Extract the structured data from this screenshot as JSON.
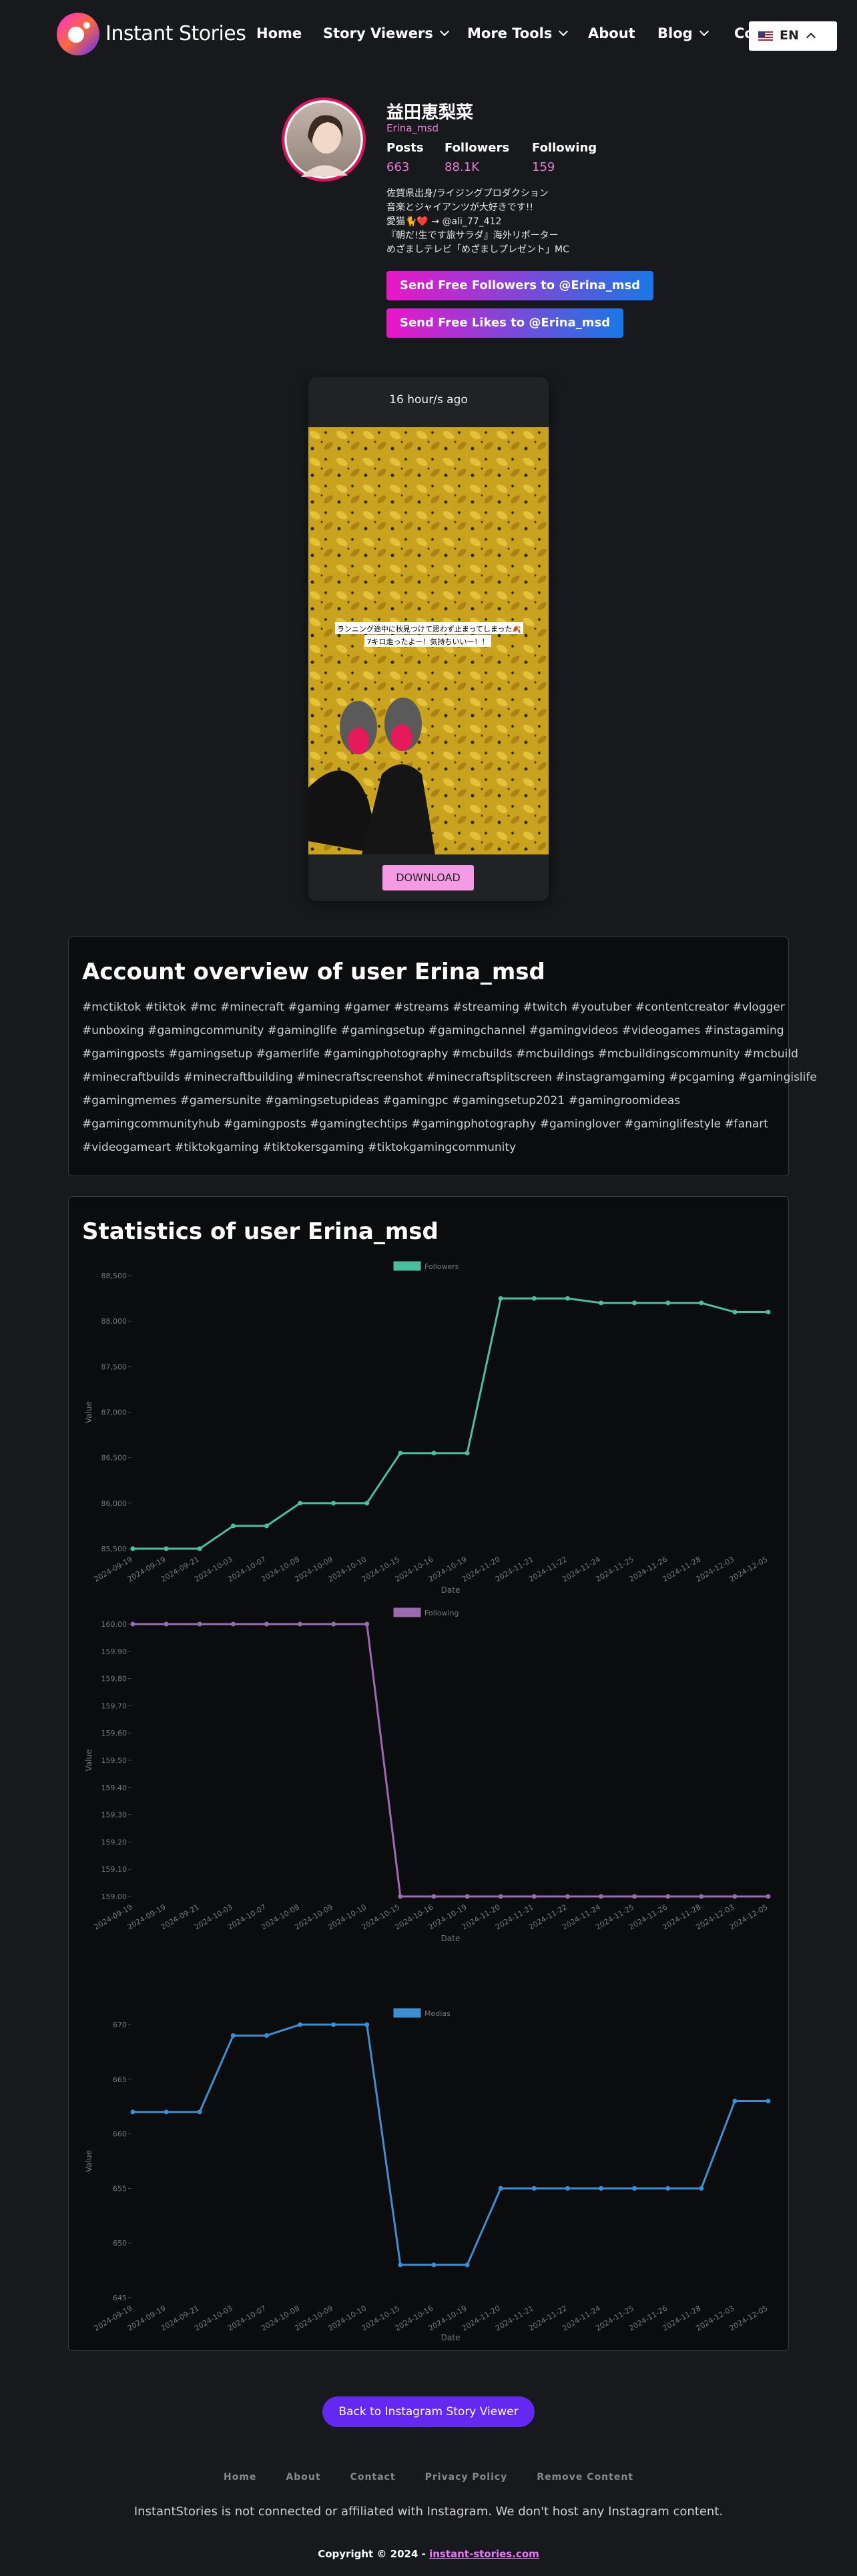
{
  "nav": {
    "brand": "Instant Stories",
    "items": [
      "Home",
      "Story Viewers",
      "More Tools",
      "About",
      "Blog",
      "Contact"
    ],
    "language": "EN"
  },
  "profile": {
    "name": "益田恵梨菜",
    "username": "Erina_msd",
    "stats": [
      {
        "label": "Posts",
        "value": "663"
      },
      {
        "label": "Followers",
        "value": "88.1K"
      },
      {
        "label": "Following",
        "value": "159"
      }
    ],
    "bio": [
      "佐賀県出身/ライジングプロダクション",
      "音楽とジャイアンツが大好きです!!",
      "愛猫🐈❤️ → @ali_77_412",
      "『朝だ!生です旅サラダ』海外リポーター",
      "めざましテレビ「めざましプレゼント」MC"
    ],
    "buttons": [
      "Send Free Followers to @Erina_msd",
      "Send Free Likes to @Erina_msd"
    ]
  },
  "story": {
    "time": "16 hour/s ago",
    "caption": [
      "ランニング途中に秋見つけて思わず止まってしまった🍂",
      "7キロ走ったよー！気持ちいいー！！"
    ],
    "download": "DOWNLOAD"
  },
  "overview": {
    "title": "Account overview of user Erina_msd",
    "hashtags": [
      "#mctiktok #tiktok #mc #minecraft #gaming #gamer #streams #streaming #twitch #youtuber #contentcreator #vlogger",
      "#unboxing #gamingcommunity #gaminglife #gamingsetup #gamingchannel #gamingvideos #videogames #instagaming",
      "#gamingposts #gamingsetup #gamerlife #gamingphotography #mcbuilds #mcbuildings #mcbuildingscommunity #mcbuild",
      "#minecraftbuilds #minecraftbuilding #minecraftscreenshot #minecraftsplitscreen #instagramgaming #pcgaming #gamingislife",
      "#gamingmemes #gamersunite #gamingsetupideas #gamingpc #gamingsetup2021 #gamingroomideas",
      "#gamingcommunityhub #gamingposts #gamingtechtips #gamingphotography #gaminglover #gaminglifestyle #fanart",
      "#videogameart #tiktokgaming #tiktokersgaming #tiktokgamingcommunity"
    ]
  },
  "statistics": {
    "title": "Statistics of user Erina_msd"
  },
  "chart_data": [
    {
      "type": "line",
      "x_label": "Date",
      "y_label": "Value",
      "categories": [
        "2024-09-19",
        "2024-09-19",
        "2024-09-21",
        "2024-10-03",
        "2024-10-07",
        "2024-10-08",
        "2024-10-09",
        "2024-10-10",
        "2024-10-15",
        "2024-10-16",
        "2024-10-19",
        "2024-11-20",
        "2024-11-21",
        "2024-11-22",
        "2024-11-24",
        "2024-11-25",
        "2024-11-26",
        "2024-11-28",
        "2024-12-03",
        "2024-12-05"
      ],
      "series": [
        {
          "name": "Followers",
          "color": "#4bc0a0",
          "values": [
            85500,
            85500,
            85500,
            85750,
            85750,
            86000,
            86000,
            86000,
            86550,
            86550,
            86550,
            88250,
            88250,
            88250,
            88200,
            88200,
            88200,
            88200,
            88100,
            88100
          ]
        }
      ],
      "ylim": [
        85500,
        88500
      ],
      "yticks": [
        {
          "value": 85500,
          "label": "85,500"
        },
        {
          "value": 86000,
          "label": "86,000"
        },
        {
          "value": 86500,
          "label": "86,500"
        },
        {
          "value": 87000,
          "label": "87,000"
        },
        {
          "value": 87500,
          "label": "87,500"
        },
        {
          "value": 88000,
          "label": "88,000"
        },
        {
          "value": 88500,
          "label": "88,500"
        }
      ]
    },
    {
      "type": "line",
      "x_label": "Date",
      "y_label": "Value",
      "categories": [
        "2024-09-19",
        "2024-09-19",
        "2024-09-21",
        "2024-10-03",
        "2024-10-07",
        "2024-10-08",
        "2024-10-09",
        "2024-10-10",
        "2024-10-15",
        "2024-10-16",
        "2024-10-19",
        "2024-11-20",
        "2024-11-21",
        "2024-11-22",
        "2024-11-24",
        "2024-11-25",
        "2024-11-26",
        "2024-11-28",
        "2024-12-03",
        "2024-12-05"
      ],
      "series": [
        {
          "name": "Following",
          "color": "#9b6bb0",
          "values": [
            160,
            160,
            160,
            160,
            160,
            160,
            160,
            160,
            159,
            159,
            159,
            159,
            159,
            159,
            159,
            159,
            159,
            159,
            159,
            159
          ]
        }
      ],
      "ylim": [
        159,
        160
      ],
      "yticks": [
        {
          "value": 159,
          "label": "159.00"
        },
        {
          "value": 159.1,
          "label": "159.10"
        },
        {
          "value": 159.2,
          "label": "159.20"
        },
        {
          "value": 159.3,
          "label": "159.30"
        },
        {
          "value": 159.4,
          "label": "159.40"
        },
        {
          "value": 159.5,
          "label": "159.50"
        },
        {
          "value": 159.6,
          "label": "159.60"
        },
        {
          "value": 159.7,
          "label": "159.70"
        },
        {
          "value": 159.8,
          "label": "159.80"
        },
        {
          "value": 159.9,
          "label": "159.90"
        },
        {
          "value": 160,
          "label": "160.00"
        }
      ]
    },
    {
      "type": "line",
      "x_label": "Date",
      "y_label": "Value",
      "categories": [
        "2024-09-19",
        "2024-09-19",
        "2024-09-21",
        "2024-10-03",
        "2024-10-07",
        "2024-10-08",
        "2024-10-09",
        "2024-10-10",
        "2024-10-15",
        "2024-10-16",
        "2024-10-19",
        "2024-11-20",
        "2024-11-21",
        "2024-11-22",
        "2024-11-24",
        "2024-11-25",
        "2024-11-26",
        "2024-11-28",
        "2024-12-03",
        "2024-12-05"
      ],
      "series": [
        {
          "name": "Medias",
          "color": "#3e8fd0",
          "values": [
            662,
            662,
            662,
            669,
            669,
            670,
            670,
            670,
            648,
            648,
            648,
            655,
            655,
            655,
            655,
            655,
            655,
            655,
            663,
            663
          ]
        }
      ],
      "ylim": [
        645,
        670
      ],
      "yticks": [
        645,
        650,
        655,
        660,
        665,
        670
      ]
    }
  ],
  "back_button": "Back to Instagram Story Viewer",
  "footer": {
    "links": [
      "Home",
      "About",
      "Contact",
      "Privacy Policy",
      "Remove Content"
    ],
    "disclaimer": "InstantStories is not connected or affiliated with Instagram. We don't host any Instagram content.",
    "copyright": "Copyright © 2024 -",
    "site": "instant-stories.com"
  }
}
